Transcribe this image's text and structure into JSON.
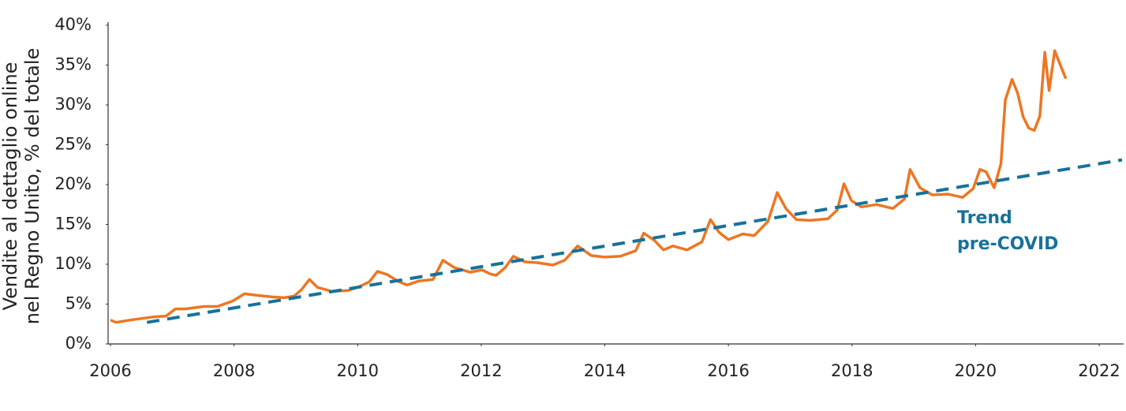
{
  "chart_data": {
    "type": "line",
    "y_label": [
      "Vendite al dettaglio online",
      "nel Regno Unito, % del totale"
    ],
    "annotation": [
      "Trend",
      "pre-COVID"
    ],
    "xlim": [
      2006,
      2022.37
    ],
    "xticks": [
      2006,
      2008,
      2010,
      2012,
      2014,
      2016,
      2018,
      2020,
      2022
    ],
    "ylim": [
      0,
      40
    ],
    "yticks": [
      {
        "value": 0,
        "label": "0%"
      },
      {
        "value": 5,
        "label": "5%"
      },
      {
        "value": 10,
        "label": "10%"
      },
      {
        "value": 15,
        "label": "15%"
      },
      {
        "value": 20,
        "label": "20%"
      },
      {
        "value": 25,
        "label": "25%"
      },
      {
        "value": 30,
        "label": "30%"
      },
      {
        "value": 35,
        "label": "35%"
      },
      {
        "value": 40,
        "label": "40%"
      }
    ],
    "grid": false,
    "series": [
      {
        "color": "#ee7623",
        "dashed": false,
        "x": [
          2006.0,
          2006.09,
          2006.32,
          2006.51,
          2006.7,
          2006.9,
          2007.05,
          2007.21,
          2007.51,
          2007.73,
          2007.98,
          2008.17,
          2008.37,
          2008.62,
          2008.81,
          2008.97,
          2009.09,
          2009.22,
          2009.35,
          2009.58,
          2009.84,
          2010.03,
          2010.19,
          2010.32,
          2010.48,
          2010.67,
          2010.8,
          2010.99,
          2011.22,
          2011.38,
          2011.56,
          2011.82,
          2012.01,
          2012.14,
          2012.24,
          2012.39,
          2012.52,
          2012.71,
          2012.91,
          2013.16,
          2013.35,
          2013.56,
          2013.78,
          2013.99,
          2014.25,
          2014.5,
          2014.63,
          2014.8,
          2014.95,
          2015.1,
          2015.33,
          2015.57,
          2015.71,
          2015.85,
          2016.0,
          2016.23,
          2016.42,
          2016.64,
          2016.79,
          2016.93,
          2017.1,
          2017.32,
          2017.61,
          2017.76,
          2017.87,
          2017.99,
          2018.15,
          2018.4,
          2018.66,
          2018.85,
          2018.94,
          2019.1,
          2019.3,
          2019.55,
          2019.79,
          2019.96,
          2020.07,
          2020.17,
          2020.3,
          2020.41,
          2020.48,
          2020.59,
          2020.68,
          2020.77,
          2020.86,
          2020.95,
          2021.04,
          2021.12,
          2021.19,
          2021.28,
          2021.46
        ],
        "values": [
          3.0,
          2.7,
          3.0,
          3.2,
          3.4,
          3.5,
          4.4,
          4.4,
          4.7,
          4.7,
          5.4,
          6.3,
          6.1,
          5.9,
          5.8,
          6.0,
          6.8,
          8.1,
          7.1,
          6.6,
          6.7,
          7.2,
          7.8,
          9.1,
          8.7,
          7.8,
          7.4,
          7.9,
          8.1,
          10.5,
          9.6,
          9.0,
          9.3,
          8.8,
          8.6,
          9.6,
          11.0,
          10.3,
          10.2,
          9.9,
          10.5,
          12.3,
          11.1,
          10.9,
          11.0,
          11.7,
          13.9,
          13.0,
          11.8,
          12.3,
          11.8,
          12.8,
          15.6,
          14.0,
          13.1,
          13.8,
          13.6,
          15.4,
          19.0,
          17.0,
          15.6,
          15.5,
          15.7,
          16.8,
          20.1,
          18.0,
          17.2,
          17.5,
          17.0,
          18.2,
          21.9,
          19.6,
          18.7,
          18.8,
          18.4,
          19.5,
          21.9,
          21.6,
          19.6,
          22.6,
          30.6,
          33.2,
          31.5,
          28.5,
          27.1,
          26.8,
          28.6,
          36.6,
          31.8,
          36.8,
          33.3
        ]
      },
      {
        "color": "#17729a",
        "dashed": true,
        "x": [
          2006.59,
          2022.37
        ],
        "values": [
          2.7,
          23.1
        ]
      }
    ]
  }
}
